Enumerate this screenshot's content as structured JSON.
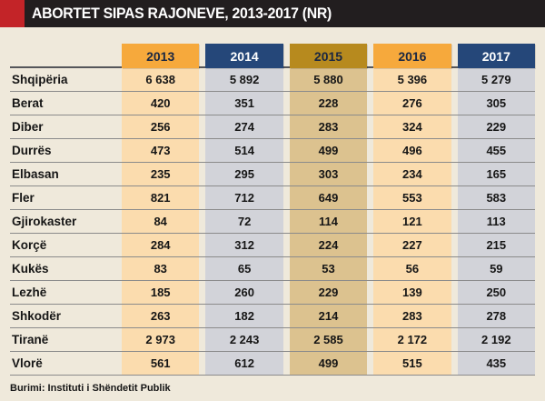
{
  "title": "ABORTET SIPAS RAJONEVE, 2013-2017 (NR)",
  "source": "Burimi: Instituti i Shëndetit Publik",
  "colors": {
    "page-bg": "#EFE9DB",
    "bar-bg": "#221E1F",
    "bar-accent": "#C32428",
    "hdr-orange": "#F6A93C",
    "hdr-navy": "#254779",
    "hdr-gold": "#B78A1E",
    "tint-orange": "#FBDCAE",
    "tint-gray": "#D2D3D9",
    "tint-tan": "#DCC28F",
    "divider": "#8B8B8B",
    "text-dark": "#161616"
  },
  "chart_data": {
    "type": "table",
    "title": "ABORTET SIPAS RAJONEVE, 2013-2017 (NR)",
    "columns": [
      "2013",
      "2014",
      "2015",
      "2016",
      "2017"
    ],
    "rows": [
      {
        "region": "Shqipëria",
        "values": [
          "6 638",
          "5 892",
          "5 880",
          "5 396",
          "5 279"
        ]
      },
      {
        "region": "Berat",
        "values": [
          "420",
          "351",
          "228",
          "276",
          "305"
        ]
      },
      {
        "region": "Diber",
        "values": [
          "256",
          "274",
          "283",
          "324",
          "229"
        ]
      },
      {
        "region": "Durrës",
        "values": [
          "473",
          "514",
          "499",
          "496",
          "455"
        ]
      },
      {
        "region": "Elbasan",
        "values": [
          "235",
          "295",
          "303",
          "234",
          "165"
        ]
      },
      {
        "region": "Fler",
        "values": [
          "821",
          "712",
          "649",
          "553",
          "583"
        ]
      },
      {
        "region": "Gjirokaster",
        "values": [
          "84",
          "72",
          "114",
          "121",
          "113"
        ]
      },
      {
        "region": "Korçë",
        "values": [
          "284",
          "312",
          "224",
          "227",
          "215"
        ]
      },
      {
        "region": "Kukës",
        "values": [
          "83",
          "65",
          "53",
          "56",
          "59"
        ]
      },
      {
        "region": "Lezhë",
        "values": [
          "185",
          "260",
          "229",
          "139",
          "250"
        ]
      },
      {
        "region": "Shkodër",
        "values": [
          "263",
          "182",
          "214",
          "283",
          "278"
        ]
      },
      {
        "region": "Tiranë",
        "values": [
          "2 973",
          "2 243",
          "2 585",
          "2 172",
          "2 192"
        ]
      },
      {
        "region": "Vlorë",
        "values": [
          "561",
          "612",
          "499",
          "515",
          "435"
        ]
      }
    ],
    "source": "Burimi: Instituti i Shëndetit Publik"
  }
}
